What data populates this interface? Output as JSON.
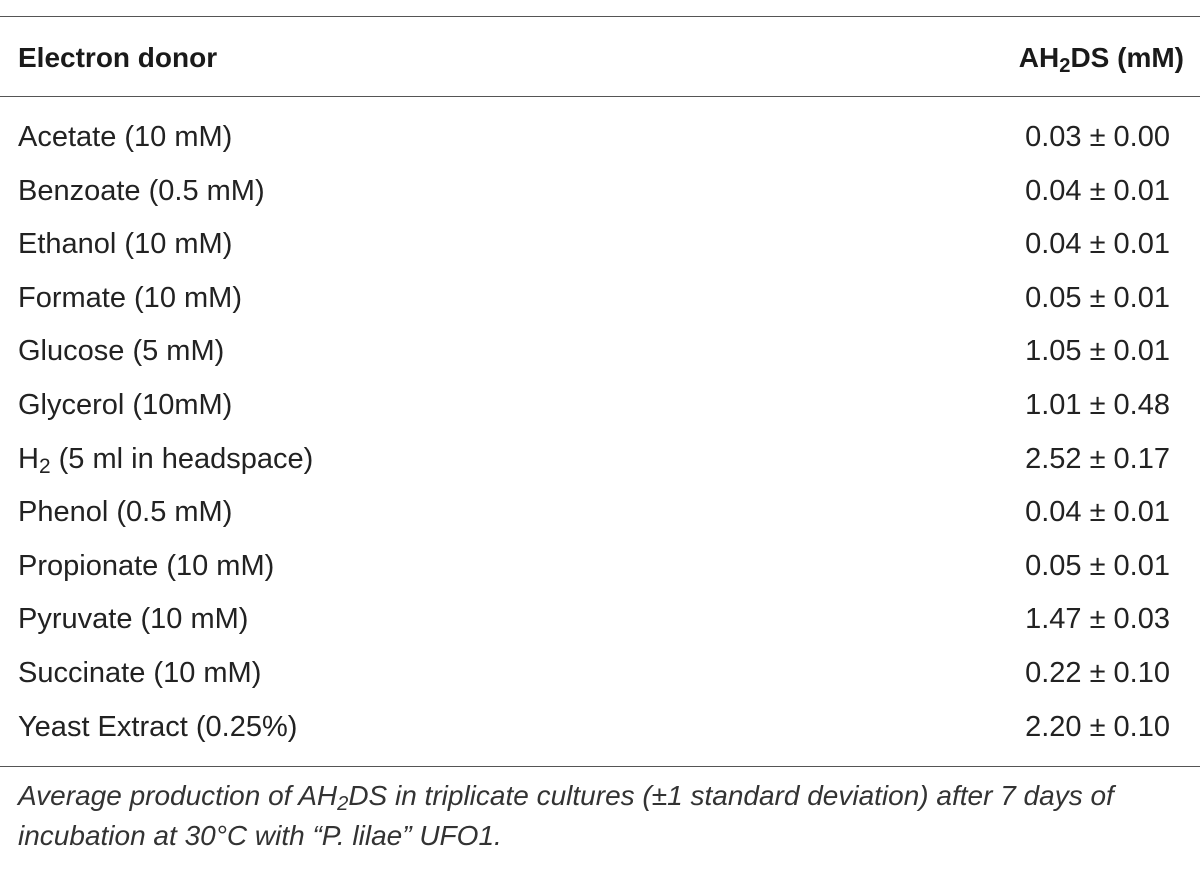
{
  "table": {
    "header": {
      "donor_label": "Electron donor",
      "value_label_prefix": "AH",
      "value_label_sub": "2",
      "value_label_suffix": "DS (mM)"
    },
    "rows": [
      {
        "donor": "Acetate (10 mM)",
        "value": "0.03 ± 0.00"
      },
      {
        "donor": "Benzoate (0.5 mM)",
        "value": "0.04 ± 0.01"
      },
      {
        "donor": "Ethanol (10 mM)",
        "value": "0.04 ± 0.01"
      },
      {
        "donor": "Formate (10 mM)",
        "value": "0.05 ± 0.01"
      },
      {
        "donor": "Glucose (5 mM)",
        "value": "1.05 ± 0.01"
      },
      {
        "donor": "Glycerol (10mM)",
        "value": "1.01 ± 0.48"
      },
      {
        "donor_prefix": "H",
        "donor_sub": "2",
        "donor": " (5 ml in headspace)",
        "value": "2.52 ± 0.17"
      },
      {
        "donor": "Phenol (0.5 mM)",
        "value": "0.04 ± 0.01"
      },
      {
        "donor": "Propionate (10 mM)",
        "value": "0.05 ± 0.01"
      },
      {
        "donor": "Pyruvate (10 mM)",
        "value": "1.47 ± 0.03"
      },
      {
        "donor": "Succinate (10 mM)",
        "value": "0.22 ± 0.10"
      },
      {
        "donor": "Yeast Extract (0.25%)",
        "value": "2.20 ± 0.10"
      }
    ],
    "caption": {
      "part1": "Average production of AH",
      "sub": "2",
      "part2": "DS in triplicate cultures (±1 standard deviation) after 7 days of incubation at 30°C with “P. lilae” UFO1."
    }
  }
}
